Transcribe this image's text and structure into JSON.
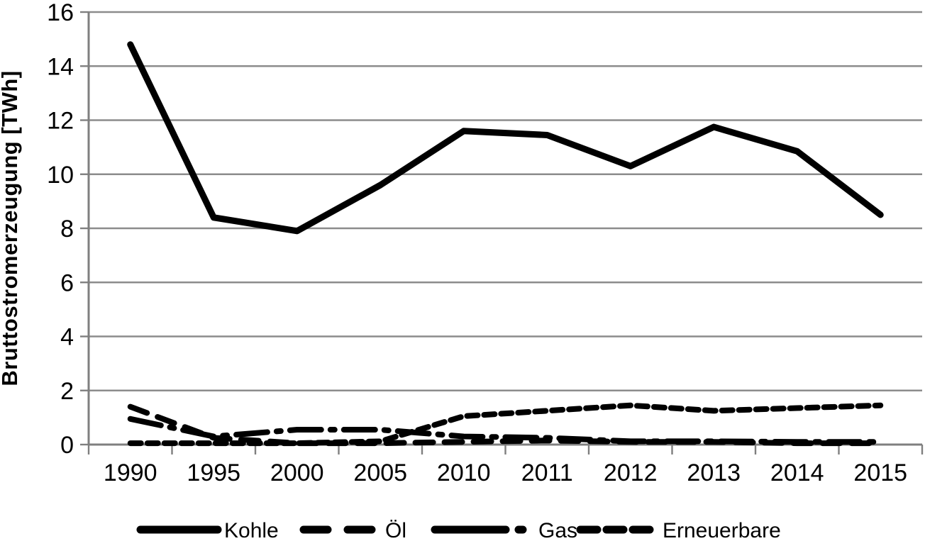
{
  "chart_data": {
    "type": "line",
    "title": "",
    "xlabel": "",
    "ylabel": "Bruttostromerzeugung [TWh]",
    "ylim": [
      0,
      16
    ],
    "yticks": [
      0,
      2,
      4,
      6,
      8,
      10,
      12,
      14,
      16
    ],
    "grid": true,
    "legend_position": "bottom",
    "categories": [
      "1990",
      "1995",
      "2000",
      "2005",
      "2010",
      "2011",
      "2012",
      "2013",
      "2014",
      "2015"
    ],
    "series": [
      {
        "name": "Kohle",
        "line_style": "solid",
        "values": [
          14.8,
          8.4,
          7.9,
          9.6,
          11.6,
          11.45,
          10.3,
          11.75,
          10.85,
          8.5
        ]
      },
      {
        "name": "Öl",
        "line_style": "dash",
        "values": [
          1.4,
          0.25,
          0.05,
          0.05,
          0.1,
          0.15,
          0.1,
          0.1,
          0.05,
          0.05
        ]
      },
      {
        "name": "Gas",
        "line_style": "long-dash-dot",
        "values": [
          0.95,
          0.3,
          0.55,
          0.55,
          0.3,
          0.25,
          0.12,
          0.12,
          0.1,
          0.1
        ]
      },
      {
        "name": "Erneuerbare",
        "line_style": "short-dash",
        "values": [
          0.05,
          0.05,
          0.05,
          0.12,
          1.05,
          1.25,
          1.45,
          1.25,
          1.35,
          1.45
        ]
      }
    ],
    "line_color": "#000000",
    "grid_color": "#8c8c8c",
    "axis_color": "#7f7f7f",
    "background_color": "#ffffff"
  }
}
